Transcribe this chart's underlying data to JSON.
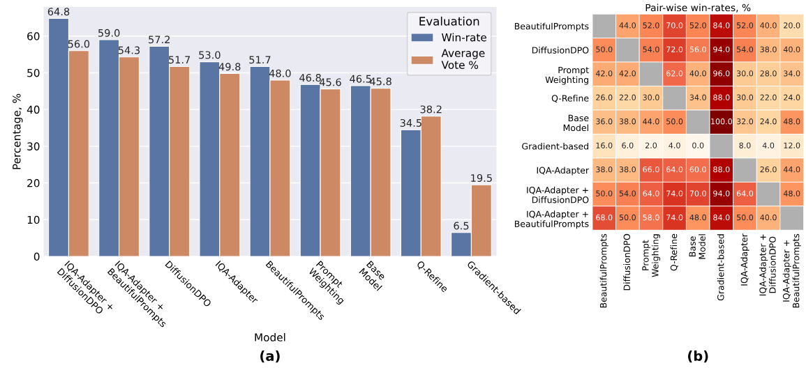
{
  "chart_data": [
    {
      "type": "bar",
      "xlabel": "Model",
      "ylabel": "Percentage, %",
      "legend_title": "Evaluation",
      "legend": "top right",
      "grid": "y",
      "categories": [
        "IQA-Adapter +\nDiffusionDPO",
        "IQA-Adapter +\nBeautifulPrompts",
        "DiffusionDPO",
        "IQA-Adapter",
        "BeautifulPrompts",
        "Prompt\nWeighting",
        "Base\nModel",
        "Q-Refine",
        "Gradient-based"
      ],
      "series": [
        {
          "name": "Win-rate",
          "color": "#5975a4",
          "values": [
            64.8,
            59.0,
            57.2,
            53.0,
            51.7,
            46.8,
            46.5,
            34.5,
            6.5
          ],
          "value_labels": [
            "64.8",
            "59.0",
            "57.2",
            "53.0",
            "51.7",
            "46.8",
            "46.5",
            "34.5",
            "6.5"
          ]
        },
        {
          "name": "Average\nVote %",
          "color": "#cc8963",
          "values": [
            56.0,
            54.3,
            51.7,
            49.8,
            48.0,
            45.6,
            45.8,
            38.2,
            19.5
          ],
          "value_labels": [
            "56.0",
            "54.3",
            "51.7",
            "49.8",
            "48.0",
            "45.6",
            "45.8",
            "38.2",
            "19.5"
          ]
        }
      ],
      "ylim": [
        0,
        67.9
      ],
      "yticks": [
        0,
        10,
        20,
        30,
        40,
        50,
        60
      ],
      "annotations": [
        "(a)"
      ]
    },
    {
      "type": "heatmap",
      "title": "Pair-wise win-rates, %",
      "cell_labels": [
        [
          null,
          "44.0",
          "52.0",
          "70.0",
          "52.0",
          "84.0",
          "52.0",
          "40.0",
          "20.0"
        ],
        [
          "50.0",
          null,
          "54.0",
          "72.0",
          "56.0",
          "94.0",
          "54.0",
          "38.0",
          "40.0"
        ],
        [
          "42.0",
          "42.0",
          null,
          "62.0",
          "40.0",
          "96.0",
          "30.0",
          "28.0",
          "34.0"
        ],
        [
          "26.0",
          "22.0",
          "30.0",
          null,
          "34.0",
          "88.0",
          "30.0",
          "22.0",
          "24.0"
        ],
        [
          "36.0",
          "38.0",
          "44.0",
          "50.0",
          null,
          "100.0",
          "32.0",
          "24.0",
          "48.0"
        ],
        [
          "16.0",
          "6.0",
          "2.0",
          "4.0",
          "0.0",
          null,
          "8.0",
          "4.0",
          "12.0"
        ],
        [
          "38.0",
          "38.0",
          "66.0",
          "64.0",
          "60.0",
          "88.0",
          null,
          "26.0",
          "44.0"
        ],
        [
          "50.0",
          "54.0",
          "64.0",
          "74.0",
          "70.0",
          "94.0",
          "64.0",
          null,
          "48.0"
        ],
        [
          "68.0",
          "50.0",
          "58.0",
          "74.0",
          "48.0",
          "84.0",
          "50.0",
          "40.0",
          null
        ]
      ],
      "categories": [
        "BeautifulPrompts",
        "DiffusionDPO",
        "Prompt\nWeighting",
        "Q-Refine",
        "Base\nModel",
        "Gradient-based",
        "IQA-Adapter",
        "IQA-Adapter +\nDiffusionDPO",
        "IQA-Adapter +\nBeautifulPrompts"
      ],
      "y_categories": [
        "BeautifulPrompts",
        "DiffusionDPO",
        "Prompt\nWeighting",
        "Q-Refine",
        "Base\nModel",
        "Gradient-based",
        "IQA-Adapter",
        "IQA-Adapter +\nDiffusionDPO",
        "IQA-Adapter +\nBeautifulPrompts"
      ],
      "cells": [
        [
          null,
          44.0,
          52.0,
          70.0,
          52.0,
          84.0,
          52.0,
          40.0,
          20.0
        ],
        [
          50.0,
          null,
          54.0,
          72.0,
          56.0,
          94.0,
          54.0,
          38.0,
          40.0
        ],
        [
          42.0,
          42.0,
          null,
          62.0,
          40.0,
          96.0,
          30.0,
          28.0,
          34.0
        ],
        [
          26.0,
          22.0,
          30.0,
          null,
          34.0,
          88.0,
          30.0,
          22.0,
          24.0
        ],
        [
          36.0,
          38.0,
          44.0,
          50.0,
          null,
          100.0,
          32.0,
          24.0,
          48.0
        ],
        [
          16.0,
          6.0,
          2.0,
          4.0,
          0.0,
          null,
          8.0,
          4.0,
          12.0
        ],
        [
          38.0,
          38.0,
          66.0,
          64.0,
          60.0,
          88.0,
          null,
          26.0,
          44.0
        ],
        [
          50.0,
          54.0,
          64.0,
          74.0,
          70.0,
          94.0,
          64.0,
          null,
          48.0
        ],
        [
          68.0,
          50.0,
          58.0,
          74.0,
          48.0,
          84.0,
          50.0,
          40.0,
          null
        ]
      ],
      "annotations": [
        "(b)"
      ]
    }
  ]
}
